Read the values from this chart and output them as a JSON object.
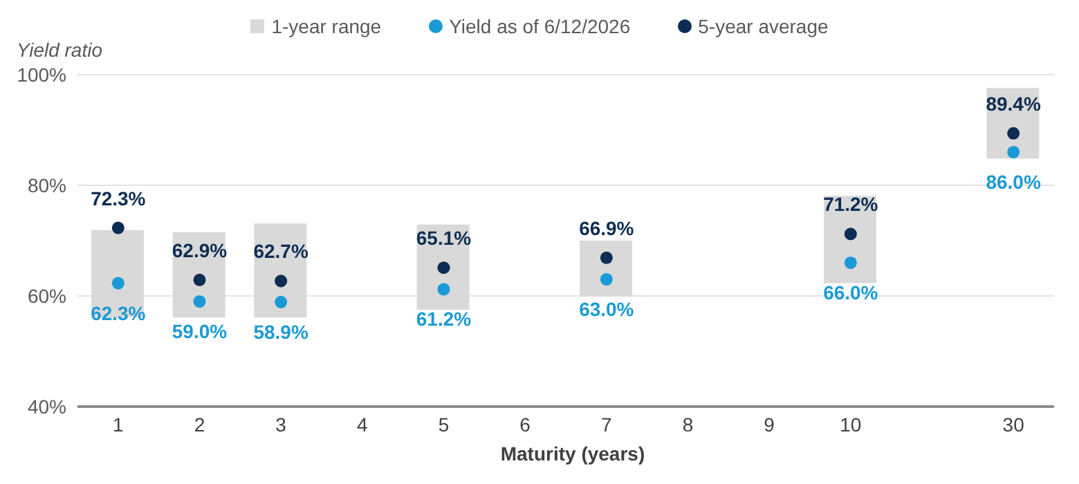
{
  "chart_data": {
    "type": "scatter",
    "ylabel": "Yield ratio",
    "xlabel": "Maturity (years)",
    "categories": [
      "1",
      "2",
      "3",
      "4",
      "5",
      "6",
      "7",
      "8",
      "9",
      "10",
      null,
      "30"
    ],
    "series": [
      {
        "name": "1-year range",
        "type": "bar",
        "color": "#d9d9d9",
        "base": [
          56.1,
          56.1,
          56.1,
          null,
          57.5,
          null,
          59.9,
          null,
          null,
          62.3,
          null,
          84.8
        ],
        "values": [
          15.8,
          15.4,
          17.0,
          null,
          15.4,
          null,
          10.1,
          null,
          null,
          15.8,
          null,
          12.8
        ]
      },
      {
        "name": "Yield as of 6/12/2026",
        "color": "#1a9ad6",
        "values": [
          62.3,
          59.0,
          58.9,
          null,
          61.2,
          null,
          63.0,
          null,
          null,
          66.0,
          null,
          86.0
        ],
        "value_labels": [
          "62.3%",
          "59.0%",
          "58.9%",
          null,
          "61.2%",
          null,
          "63.0%",
          null,
          null,
          "66.0%",
          null,
          "86.0%"
        ]
      },
      {
        "name": "5-year average",
        "color": "#0d2d52",
        "values": [
          72.3,
          62.9,
          62.7,
          null,
          65.1,
          null,
          66.9,
          null,
          null,
          71.2,
          null,
          89.4
        ],
        "value_labels": [
          "72.3%",
          "62.9%",
          "62.7%",
          null,
          "65.1%",
          null,
          "66.9%",
          null,
          null,
          "71.2%",
          null,
          "89.4%"
        ]
      }
    ],
    "ylim": [
      40,
      100
    ],
    "yticks": [
      {
        "value": 40,
        "label": "40%"
      },
      {
        "value": 60,
        "label": "60%"
      },
      {
        "value": 80,
        "label": "80%"
      },
      {
        "value": 100,
        "label": "100%"
      }
    ],
    "grid": "y",
    "legend": "top",
    "marker": "circle"
  }
}
